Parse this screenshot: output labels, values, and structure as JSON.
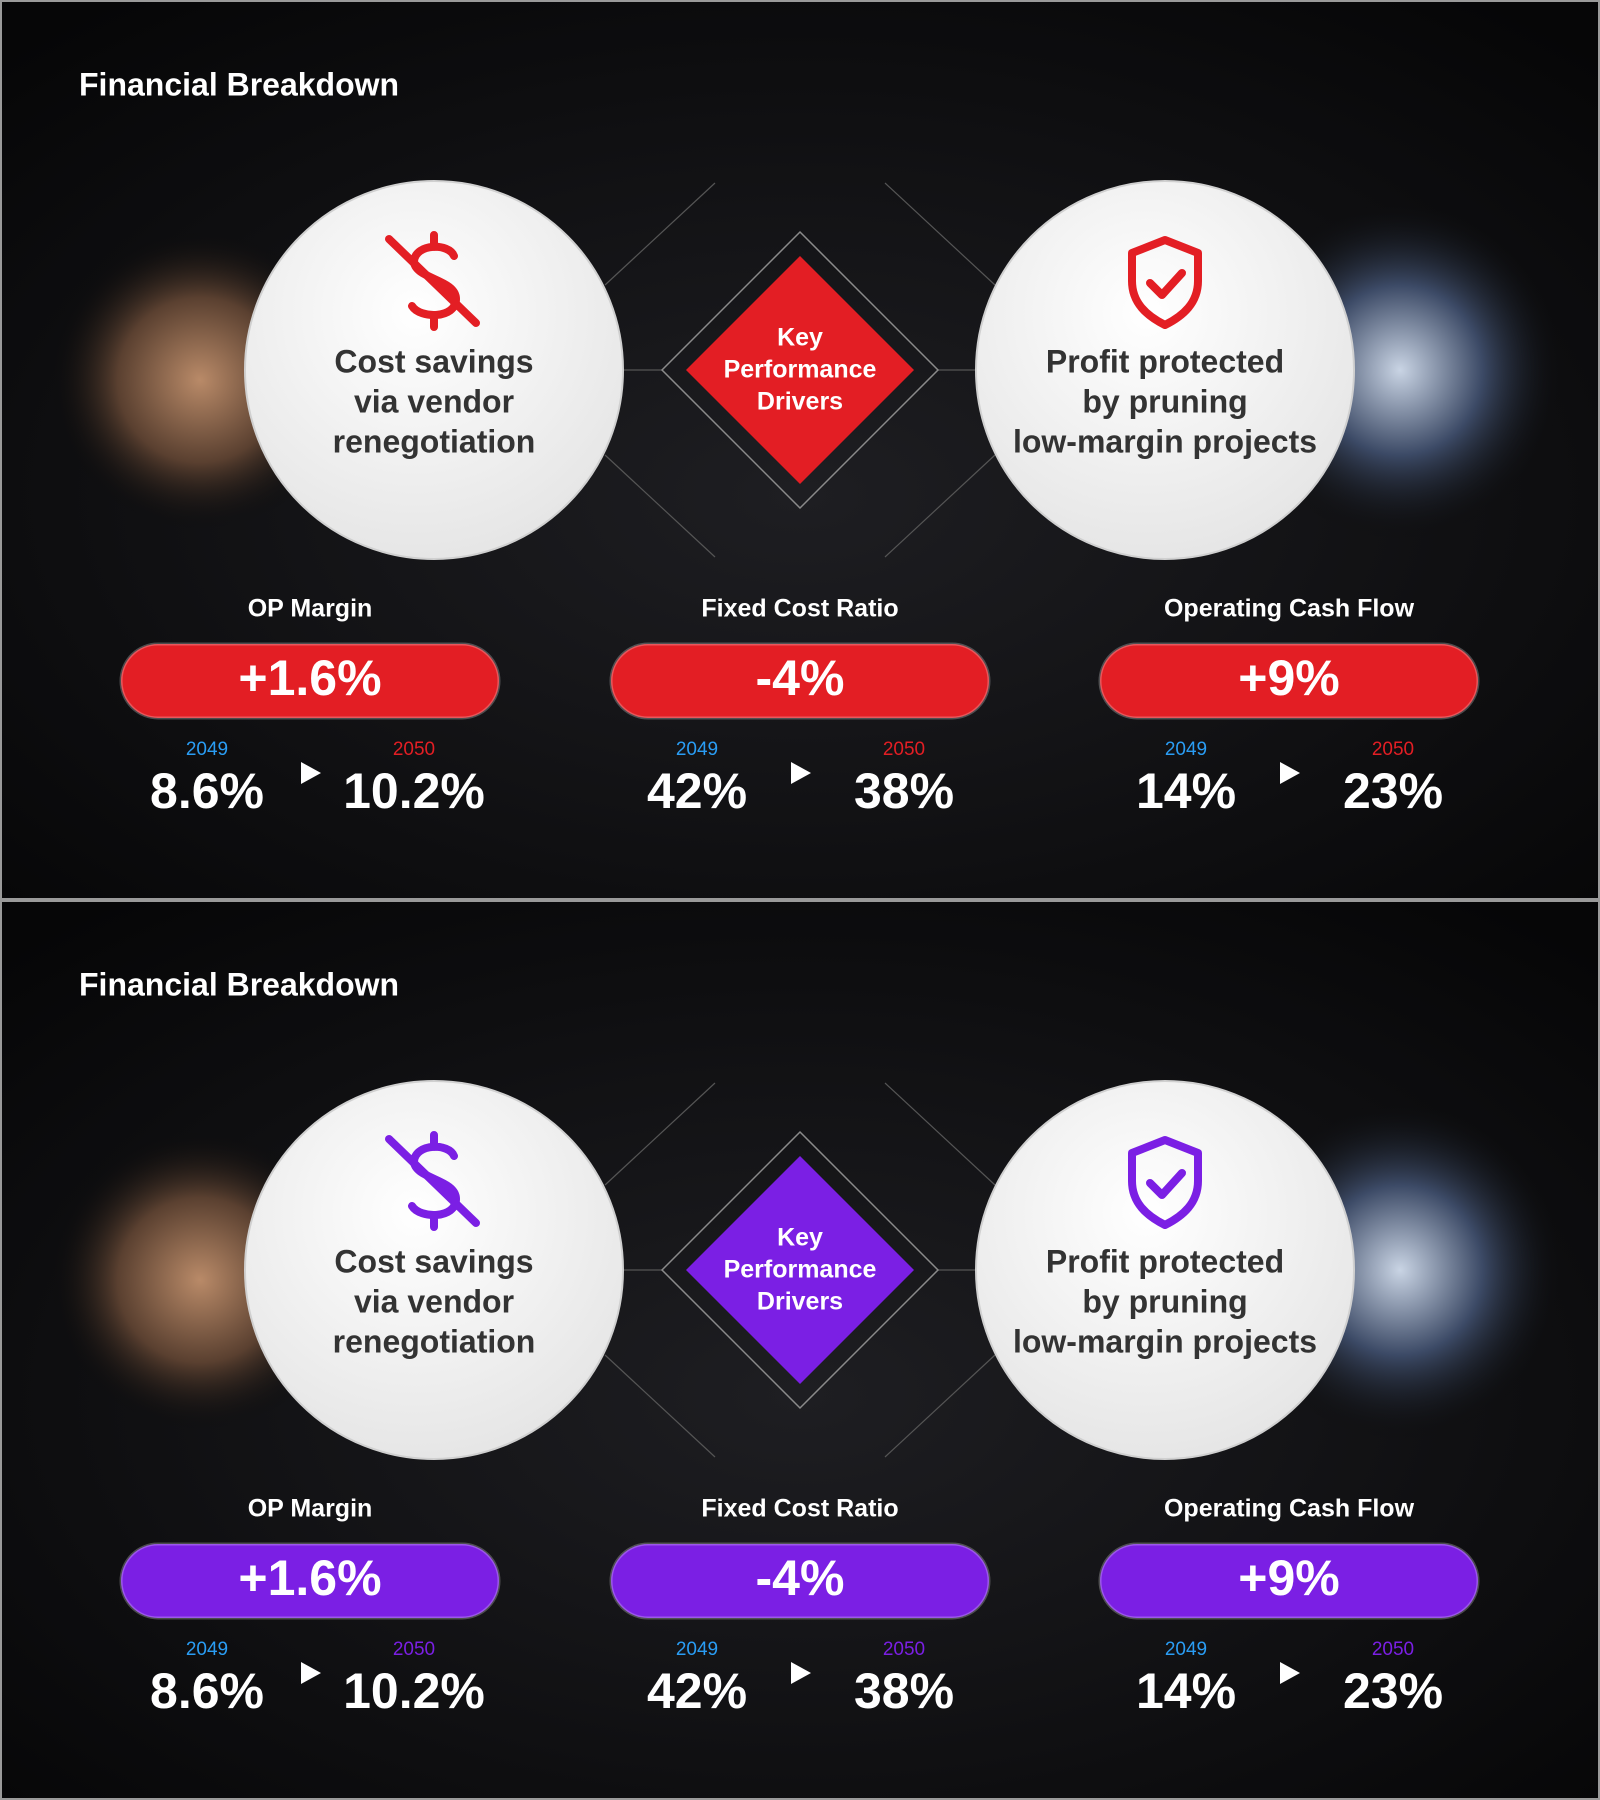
{
  "panels": [
    {
      "title": "Financial Breakdown",
      "accent": "#e31e24",
      "left_card": {
        "lines": [
          "Cost savings",
          "via vendor",
          "renegotiation"
        ]
      },
      "center": {
        "lines": [
          "Key",
          "Performance",
          "Drivers"
        ]
      },
      "right_card": {
        "lines": [
          "Profit protected",
          "by pruning",
          "low-margin projects"
        ]
      },
      "metrics": [
        {
          "label": "OP Margin",
          "change": "+1.6%",
          "from_year": "2049",
          "from_value": "8.6%",
          "to_year": "2050",
          "to_value": "10.2%"
        },
        {
          "label": "Fixed Cost Ratio",
          "change": "-4%",
          "from_year": "2049",
          "from_value": "42%",
          "to_year": "2050",
          "to_value": "38%"
        },
        {
          "label": "Operating Cash Flow",
          "change": "+9%",
          "from_year": "2049",
          "from_value": "14%",
          "to_year": "2050",
          "to_value": "23%"
        }
      ]
    },
    {
      "title": "Financial Breakdown",
      "accent": "#7b1fe4",
      "left_card": {
        "lines": [
          "Cost savings",
          "via vendor",
          "renegotiation"
        ]
      },
      "center": {
        "lines": [
          "Key",
          "Performance",
          "Drivers"
        ]
      },
      "right_card": {
        "lines": [
          "Profit protected",
          "by pruning",
          "low-margin projects"
        ]
      },
      "metrics": [
        {
          "label": "OP Margin",
          "change": "+1.6%",
          "from_year": "2049",
          "from_value": "8.6%",
          "to_year": "2050",
          "to_value": "10.2%"
        },
        {
          "label": "Fixed Cost Ratio",
          "change": "-4%",
          "from_year": "2049",
          "from_value": "42%",
          "to_year": "2050",
          "to_value": "38%"
        },
        {
          "label": "Operating Cash Flow",
          "change": "+9%",
          "from_year": "2049",
          "from_value": "14%",
          "to_year": "2050",
          "to_value": "23%"
        }
      ]
    }
  ]
}
